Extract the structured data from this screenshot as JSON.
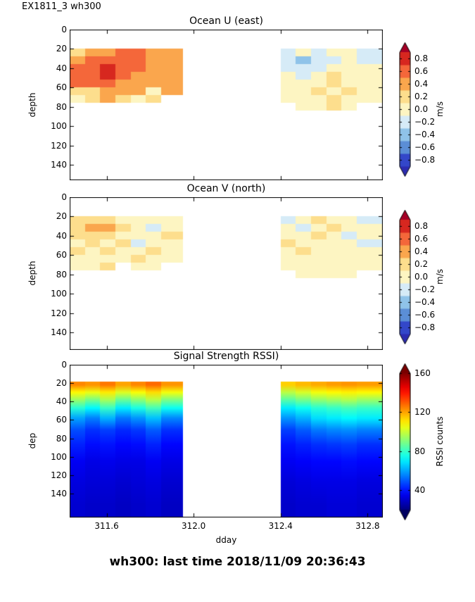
{
  "figure": {
    "label": "EX1811_3 wh300"
  },
  "footer": {
    "status": "wh300: last time 2018/11/09 20:36:43"
  },
  "chart_data": [
    {
      "type": "heatmap",
      "heat": "discrete",
      "title": "Ocean U (east)",
      "ylabel": "depth",
      "xlabel": "",
      "xlim": [
        311.43,
        312.87
      ],
      "ylim": [
        0,
        156
      ],
      "xticks": {
        "values": [
          311.6,
          312.0,
          312.4,
          312.8
        ],
        "labels": [
          "311.6",
          "312.0",
          "312.4",
          "312.8"
        ],
        "show_labels": false
      },
      "yticks": {
        "values": [
          0,
          20,
          40,
          60,
          80,
          100,
          120,
          140
        ],
        "labels": [
          "0",
          "20",
          "40",
          "60",
          "80",
          "100",
          "120",
          "140"
        ]
      },
      "colorbar": {
        "label": "m/s",
        "levels": [
          -0.9,
          -0.7,
          -0.5,
          -0.3,
          -0.1,
          0.1,
          0.3,
          0.5,
          0.7,
          0.9
        ],
        "colors": [
          "#3347c9",
          "#5b8ed6",
          "#8fc3e9",
          "#d6ebf7",
          "#fdf5c2",
          "#fdde8d",
          "#faa64d",
          "#f4673a",
          "#d7271f"
        ],
        "under": "#2c2cb0",
        "over": "#a50026",
        "ticks": {
          "values": [
            0.8,
            0.6,
            0.4,
            0.2,
            0.0,
            -0.2,
            -0.4,
            -0.6,
            -0.8
          ],
          "labels": [
            "0.8",
            "0.6",
            "0.4",
            "0.2",
            "0.0",
            "−0.2",
            "−0.4",
            "−0.6",
            "−0.8"
          ]
        }
      },
      "grid": {
        "x_edges": [
          311.43,
          311.5,
          311.57,
          311.64,
          311.71,
          311.78,
          311.85,
          311.95,
          312.4,
          312.47,
          312.54,
          312.61,
          312.68,
          312.75,
          312.87
        ],
        "y_edges": [
          20,
          28,
          36,
          44,
          52,
          60,
          68,
          76,
          84
        ],
        "values": [
          [
            0.25,
            0.4,
            0.4,
            0.5,
            0.55,
            0.4,
            0.35,
            null,
            -0.15,
            -0.1,
            -0.15,
            -0.05,
            0.05,
            -0.15
          ],
          [
            0.4,
            0.55,
            0.6,
            0.55,
            0.6,
            0.45,
            0.4,
            null,
            -0.2,
            -0.35,
            -0.3,
            -0.15,
            -0.1,
            -0.15
          ],
          [
            0.55,
            0.6,
            0.75,
            0.65,
            0.5,
            0.4,
            0.45,
            null,
            -0.15,
            -0.2,
            -0.15,
            0.05,
            -0.1,
            -0.1
          ],
          [
            0.6,
            0.65,
            0.8,
            0.6,
            0.45,
            0.35,
            0.4,
            null,
            -0.1,
            -0.15,
            0.05,
            0.1,
            0.05,
            0.05
          ],
          [
            0.6,
            0.5,
            0.55,
            0.45,
            0.35,
            0.3,
            0.35,
            null,
            0.05,
            -0.1,
            0.05,
            0.1,
            0.05,
            0.05
          ],
          [
            0.2,
            0.15,
            0.35,
            0.4,
            0.3,
            0.05,
            0.35,
            null,
            0.05,
            0.05,
            0.1,
            0.05,
            0.1,
            0.05
          ],
          [
            0.05,
            0.1,
            0.3,
            0.2,
            0.05,
            0.1,
            null,
            null,
            0.05,
            0.05,
            0.05,
            0.1,
            0.05,
            0.05
          ],
          [
            null,
            null,
            null,
            null,
            null,
            null,
            null,
            null,
            null,
            0.05,
            0.05,
            0.1,
            0.05,
            null
          ]
        ]
      }
    },
    {
      "type": "heatmap",
      "heat": "discrete",
      "title": "Ocean V (north)",
      "ylabel": "depth",
      "xlabel": "",
      "xlim": [
        311.43,
        312.87
      ],
      "ylim": [
        0,
        158
      ],
      "xticks": {
        "values": [
          311.6,
          312.0,
          312.4,
          312.8
        ],
        "labels": [
          "311.6",
          "312.0",
          "312.4",
          "312.8"
        ],
        "show_labels": false
      },
      "yticks": {
        "values": [
          0,
          20,
          40,
          60,
          80,
          100,
          120,
          140
        ],
        "labels": [
          "0",
          "20",
          "40",
          "60",
          "80",
          "100",
          "120",
          "140"
        ]
      },
      "colorbar": {
        "label": "m/s",
        "levels": [
          -0.9,
          -0.7,
          -0.5,
          -0.3,
          -0.1,
          0.1,
          0.3,
          0.5,
          0.7,
          0.9
        ],
        "colors": [
          "#3347c9",
          "#5b8ed6",
          "#8fc3e9",
          "#d6ebf7",
          "#fdf5c2",
          "#fdde8d",
          "#faa64d",
          "#f4673a",
          "#d7271f"
        ],
        "under": "#2c2cb0",
        "over": "#a50026",
        "ticks": {
          "values": [
            0.8,
            0.6,
            0.4,
            0.2,
            0.0,
            -0.2,
            -0.4,
            -0.6,
            -0.8
          ],
          "labels": [
            "0.8",
            "0.6",
            "0.4",
            "0.2",
            "0.0",
            "−0.2",
            "−0.4",
            "−0.6",
            "−0.8"
          ]
        }
      },
      "grid": {
        "x_edges": [
          311.43,
          311.5,
          311.57,
          311.64,
          311.71,
          311.78,
          311.85,
          311.95,
          312.4,
          312.47,
          312.54,
          312.61,
          312.68,
          312.75,
          312.87
        ],
        "y_edges": [
          20,
          28,
          36,
          44,
          52,
          60,
          68,
          76,
          84
        ],
        "values": [
          [
            0.1,
            0.15,
            0.1,
            0.05,
            -0.1,
            0.05,
            0.05,
            null,
            -0.15,
            0.05,
            0.1,
            0.05,
            -0.1,
            -0.15
          ],
          [
            0.2,
            0.35,
            0.3,
            0.1,
            -0.1,
            -0.15,
            0.05,
            null,
            -0.1,
            -0.15,
            0.05,
            0.1,
            0.05,
            -0.1
          ],
          [
            0.1,
            0.15,
            0.1,
            0.05,
            -0.1,
            0.05,
            0.1,
            null,
            0.05,
            -0.1,
            0.1,
            0.05,
            -0.15,
            -0.1
          ],
          [
            0.05,
            0.1,
            0.05,
            0.1,
            -0.15,
            -0.1,
            0.05,
            null,
            0.1,
            0.05,
            0.05,
            -0.1,
            0.05,
            -0.15
          ],
          [
            0.1,
            0.05,
            0.1,
            0.05,
            0.05,
            0.1,
            0.05,
            null,
            0.05,
            0.1,
            0.05,
            0.05,
            -0.1,
            0.05
          ],
          [
            -0.1,
            0.05,
            -0.1,
            0.05,
            0.1,
            0.05,
            0.05,
            null,
            0.05,
            0.05,
            -0.1,
            0.05,
            0.05,
            -0.1
          ],
          [
            0.05,
            0.05,
            0.1,
            null,
            0.05,
            0.05,
            null,
            null,
            0.05,
            0.05,
            0.05,
            -0.1,
            0.05,
            0.05
          ],
          [
            null,
            null,
            null,
            null,
            null,
            null,
            null,
            null,
            null,
            0.05,
            -0.1,
            0.05,
            0.05,
            null
          ]
        ]
      }
    },
    {
      "type": "heatmap",
      "heat": "smooth",
      "title": "Signal Strength RSSI)",
      "ylabel": "dep",
      "xlabel": "dday",
      "xlim": [
        311.43,
        312.87
      ],
      "ylim": [
        0,
        166
      ],
      "xticks": {
        "values": [
          311.6,
          312.0,
          312.4,
          312.8
        ],
        "labels": [
          "311.6",
          "312.0",
          "312.4",
          "312.8"
        ],
        "show_labels": true
      },
      "yticks": {
        "values": [
          0,
          20,
          40,
          60,
          80,
          100,
          120,
          140
        ],
        "labels": [
          "0",
          "20",
          "40",
          "60",
          "80",
          "100",
          "120",
          "140"
        ]
      },
      "colorbar": {
        "label": "RSSI counts",
        "vmin": 20,
        "vmax": 160,
        "stops": [
          [
            0,
            "#000083"
          ],
          [
            0.125,
            "#0000ff"
          ],
          [
            0.375,
            "#00ffff"
          ],
          [
            0.625,
            "#ffff00"
          ],
          [
            0.875,
            "#ff0000"
          ],
          [
            1,
            "#800000"
          ]
        ],
        "under": "#000060",
        "over": "#790000",
        "ticks": {
          "values": [
            160,
            120,
            80,
            40
          ],
          "labels": [
            "160",
            "120",
            "80",
            "40"
          ]
        }
      },
      "grid": {
        "x_edges": [
          311.43,
          311.5,
          311.57,
          311.64,
          311.71,
          311.78,
          311.85,
          311.95,
          312.4,
          312.47,
          312.54,
          312.61,
          312.68,
          312.75,
          312.87
        ],
        "y_edges": [
          18,
          26,
          34,
          42,
          52,
          64,
          78,
          95,
          115,
          140,
          166
        ],
        "values": [
          [
            124,
            122,
            126,
            120,
            124,
            128,
            122,
            null,
            114,
            117,
            119,
            121,
            122,
            121
          ],
          [
            108,
            105,
            110,
            103,
            107,
            112,
            106,
            null,
            98,
            102,
            106,
            108,
            109,
            108
          ],
          [
            94,
            89,
            96,
            87,
            92,
            98,
            90,
            null,
            85,
            89,
            93,
            95,
            97,
            94
          ],
          [
            78,
            72,
            80,
            70,
            76,
            82,
            74,
            null,
            70,
            74,
            78,
            80,
            82,
            80
          ],
          [
            60,
            55,
            62,
            54,
            58,
            64,
            56,
            null,
            58,
            62,
            68,
            70,
            72,
            70
          ],
          [
            48,
            44,
            46,
            43,
            45,
            50,
            44,
            null,
            46,
            50,
            54,
            56,
            57,
            55
          ],
          [
            42,
            39,
            40,
            38,
            39,
            42,
            38,
            null,
            40,
            42,
            44,
            45,
            46,
            44
          ],
          [
            36,
            34,
            35,
            34,
            34,
            36,
            34,
            null,
            36,
            37,
            38,
            38,
            39,
            38
          ],
          [
            33,
            32,
            32,
            31,
            32,
            33,
            31,
            null,
            32,
            33,
            34,
            34,
            34,
            33
          ],
          [
            31,
            30,
            30,
            29,
            30,
            31,
            29,
            null,
            30,
            31,
            31,
            32,
            32,
            31
          ]
        ]
      }
    }
  ]
}
